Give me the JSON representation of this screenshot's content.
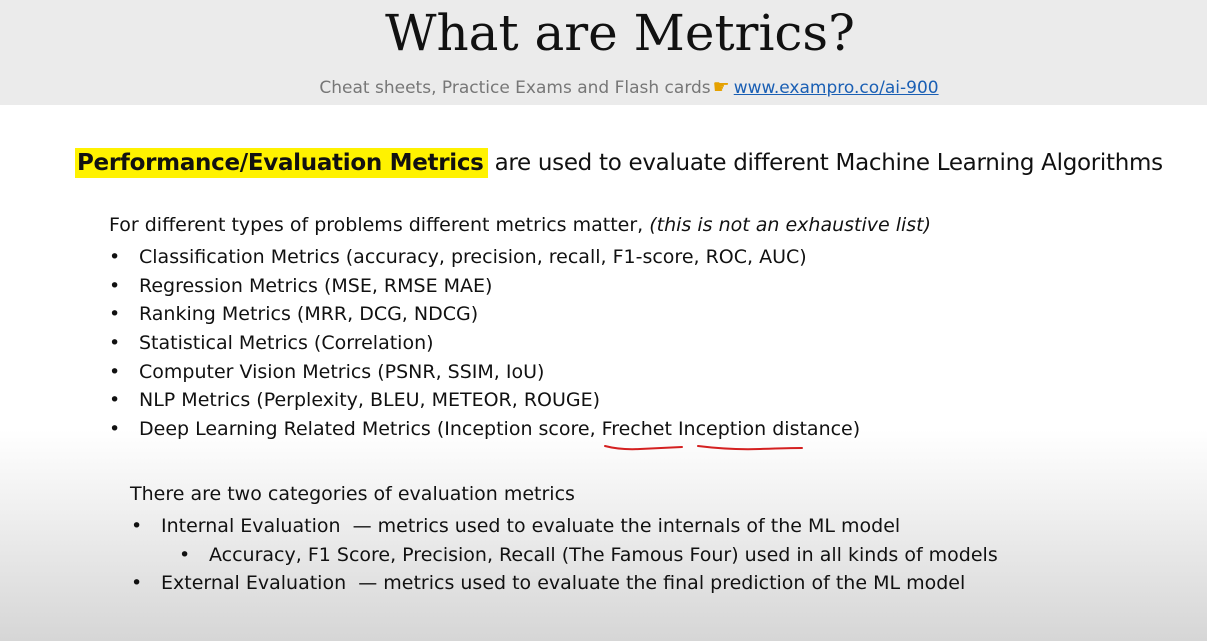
{
  "header": {
    "title": "What are Metrics?",
    "subtitle_text": "Cheat sheets, Practice Exams and Flash cards",
    "pointer_icon": "pointing-hand-icon",
    "link_text": "www.exampro.co/ai-900"
  },
  "headline": {
    "highlight": "Performance/Evaluation Metrics",
    "rest": "are used to evaluate different Machine Learning Algorithms"
  },
  "intro": {
    "text": "For different types of problems different metrics matter,",
    "note": "(this is not an exhaustive list)"
  },
  "metrics": [
    "Classification Metrics (accuracy, precision, recall, F1-score, ROC, AUC)",
    "Regression Metrics (MSE, RMSE MAE)",
    "Ranking Metrics (MRR, DCG, NDCG)",
    "Statistical Metrics (Correlation)",
    "Computer Vision Metrics (PSNR, SSIM, IoU)",
    "NLP Metrics (Perplexity, BLEU, METEOR, ROUGE)",
    "Deep Learning Related Metrics (Inception score, Frechet Inception distance)"
  ],
  "categories": {
    "intro": "There are two categories of evaluation metrics",
    "items": [
      {
        "label": "Internal Evaluation",
        "desc": "— metrics used to evaluate the internals of the ML model"
      },
      {
        "sub": "Accuracy, F1 Score, Precision, Recall (The Famous Four) used in all kinds of models"
      },
      {
        "label": "External Evaluation",
        "desc": "— metrics used to evaluate the final prediction of the ML model"
      }
    ]
  },
  "colors": {
    "highlight": "#fff200",
    "link": "#1a5fb4",
    "annotation": "#d42020"
  }
}
